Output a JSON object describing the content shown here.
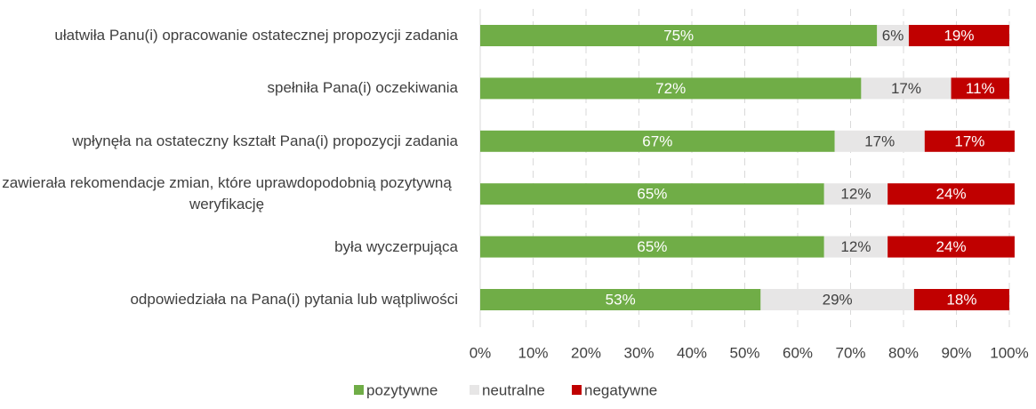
{
  "chart_data": {
    "type": "stacked_barh",
    "categories": [
      "ułatwiła Panu(i) opracowanie ostatecznej propozycji zadania",
      "spełniła Pana(i) oczekiwania",
      "wpłynęła na ostateczny kształt Pana(i) propozycji zadania",
      "zawierała rekomendacje zmian, które uprawdopodobnią pozytywną weryfikację",
      "była wyczerpująca",
      "odpowiedziała na Pana(i) pytania lub wątpliwości"
    ],
    "series": [
      {
        "name": "pozytywne",
        "color": "#70ad47",
        "label_color": "#ffffff",
        "values": [
          75,
          72,
          67,
          65,
          65,
          53
        ],
        "value_labels": [
          "75%",
          "72%",
          "67%",
          "65%",
          "65%",
          "53%"
        ]
      },
      {
        "name": "neutralne",
        "color": "#e7e6e6",
        "label_color": "#404040",
        "values": [
          6,
          17,
          17,
          12,
          12,
          29
        ],
        "value_labels": [
          "6%",
          "17%",
          "17%",
          "12%",
          "12%",
          "29%"
        ]
      },
      {
        "name": "negatywne",
        "color": "#c00000",
        "label_color": "#ffffff",
        "values": [
          19,
          11,
          17,
          24,
          24,
          18
        ],
        "value_labels": [
          "19%",
          "11%",
          "17%",
          "24%",
          "24%",
          "18%"
        ]
      }
    ],
    "xlim": [
      0,
      100
    ],
    "xticks": [
      {
        "value": 0,
        "label": "0%"
      },
      {
        "value": 10,
        "label": "10%"
      },
      {
        "value": 20,
        "label": "20%"
      },
      {
        "value": 30,
        "label": "30%"
      },
      {
        "value": 40,
        "label": "40%"
      },
      {
        "value": 50,
        "label": "50%"
      },
      {
        "value": 60,
        "label": "60%"
      },
      {
        "value": 70,
        "label": "70%"
      },
      {
        "value": 80,
        "label": "80%"
      },
      {
        "value": 90,
        "label": "90%"
      },
      {
        "value": 100,
        "label": "100%"
      }
    ],
    "grid": true,
    "legend": "bottom"
  }
}
